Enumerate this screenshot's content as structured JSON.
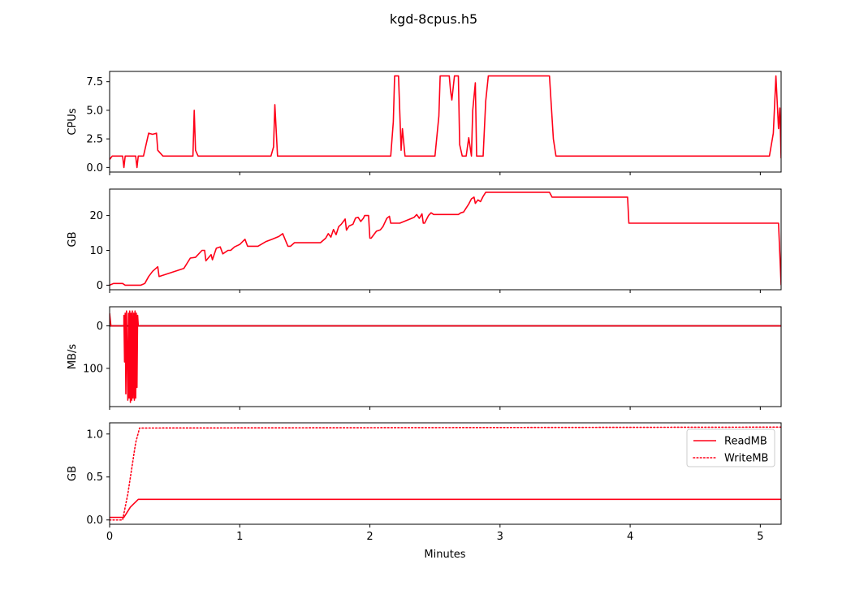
{
  "figure": {
    "title": "kgd-8cpus.h5",
    "xlabel": "Minutes",
    "x_ticks": [
      "0",
      "1",
      "2",
      "3",
      "4",
      "5"
    ]
  },
  "colors": {
    "series": "#ff0018",
    "zero_line": "#000000",
    "axes": "#000000"
  },
  "chart_data": [
    {
      "type": "line",
      "ylabel": "CPUs",
      "xlim": [
        0,
        5.16
      ],
      "ylim": [
        -0.4,
        8.4
      ],
      "y_ticks": [
        0,
        2.5,
        5,
        7.5
      ],
      "y_tick_labels": [
        "0.0",
        "2.5",
        "5.0",
        "7.5"
      ],
      "grid": false,
      "series": [
        {
          "style": "solid",
          "points": [
            [
              0,
              0.7
            ],
            [
              0.02,
              1
            ],
            [
              0.1,
              1
            ],
            [
              0.11,
              0
            ],
            [
              0.12,
              1
            ],
            [
              0.2,
              1
            ],
            [
              0.21,
              0
            ],
            [
              0.22,
              1
            ],
            [
              0.26,
              1
            ],
            [
              0.3,
              3
            ],
            [
              0.33,
              2.9
            ],
            [
              0.36,
              3
            ],
            [
              0.37,
              1.5
            ],
            [
              0.41,
              1
            ],
            [
              0.64,
              1
            ],
            [
              0.65,
              5
            ],
            [
              0.66,
              1.5
            ],
            [
              0.68,
              1
            ],
            [
              1.24,
              1
            ],
            [
              1.26,
              1.8
            ],
            [
              1.27,
              5.5
            ],
            [
              1.29,
              1
            ],
            [
              2.16,
              1
            ],
            [
              2.18,
              4
            ],
            [
              2.19,
              8
            ],
            [
              2.22,
              8
            ],
            [
              2.24,
              1.5
            ],
            [
              2.25,
              3.4
            ],
            [
              2.27,
              1
            ],
            [
              2.5,
              1
            ],
            [
              2.53,
              4.5
            ],
            [
              2.54,
              8
            ],
            [
              2.61,
              8
            ],
            [
              2.62,
              6.7
            ],
            [
              2.63,
              5.9
            ],
            [
              2.65,
              8
            ],
            [
              2.68,
              8
            ],
            [
              2.69,
              2
            ],
            [
              2.71,
              1
            ],
            [
              2.74,
              1
            ],
            [
              2.76,
              2.6
            ],
            [
              2.78,
              1
            ],
            [
              2.79,
              5
            ],
            [
              2.81,
              7.4
            ],
            [
              2.82,
              1
            ],
            [
              2.87,
              1
            ],
            [
              2.89,
              5.8
            ],
            [
              2.91,
              8
            ],
            [
              3.38,
              8
            ],
            [
              3.41,
              2.5
            ],
            [
              3.43,
              1
            ],
            [
              5.07,
              1
            ],
            [
              5.1,
              3
            ],
            [
              5.12,
              8
            ],
            [
              5.14,
              3.4
            ],
            [
              5.15,
              5.2
            ],
            [
              5.16,
              0.8
            ]
          ]
        }
      ]
    },
    {
      "type": "line",
      "ylabel": "GB",
      "xlim": [
        0,
        5.16
      ],
      "ylim": [
        -1.3,
        27.6
      ],
      "y_ticks": [
        0,
        10,
        20
      ],
      "y_tick_labels": [
        "0",
        "10",
        "20"
      ],
      "grid": false,
      "series": [
        {
          "style": "solid",
          "points": [
            [
              0,
              0
            ],
            [
              0.03,
              0.5
            ],
            [
              0.1,
              0.5
            ],
            [
              0.12,
              0
            ],
            [
              0.24,
              0
            ],
            [
              0.27,
              0.5
            ],
            [
              0.3,
              2.5
            ],
            [
              0.33,
              4
            ],
            [
              0.37,
              5.3
            ],
            [
              0.38,
              2.5
            ],
            [
              0.57,
              4.8
            ],
            [
              0.62,
              7.8
            ],
            [
              0.66,
              8
            ],
            [
              0.71,
              10
            ],
            [
              0.73,
              10
            ],
            [
              0.74,
              7
            ],
            [
              0.78,
              8.8
            ],
            [
              0.79,
              7.3
            ],
            [
              0.82,
              10.6
            ],
            [
              0.85,
              11
            ],
            [
              0.87,
              9
            ],
            [
              0.91,
              10
            ],
            [
              0.93,
              10
            ],
            [
              0.96,
              11
            ],
            [
              1.0,
              11.7
            ],
            [
              1.04,
              13.2
            ],
            [
              1.06,
              11.2
            ],
            [
              1.14,
              11.2
            ],
            [
              1.2,
              12.5
            ],
            [
              1.25,
              13.2
            ],
            [
              1.3,
              14
            ],
            [
              1.33,
              14.8
            ],
            [
              1.37,
              11.2
            ],
            [
              1.39,
              11.2
            ],
            [
              1.42,
              12.2
            ],
            [
              1.62,
              12.2
            ],
            [
              1.66,
              13.5
            ],
            [
              1.68,
              14.8
            ],
            [
              1.7,
              13.8
            ],
            [
              1.72,
              16
            ],
            [
              1.74,
              14.5
            ],
            [
              1.76,
              16.8
            ],
            [
              1.78,
              17.5
            ],
            [
              1.81,
              19
            ],
            [
              1.82,
              15.8
            ],
            [
              1.84,
              17
            ],
            [
              1.87,
              17.5
            ],
            [
              1.89,
              19.3
            ],
            [
              1.91,
              19.5
            ],
            [
              1.93,
              18.3
            ],
            [
              1.95,
              19.2
            ],
            [
              1.96,
              20
            ],
            [
              1.99,
              20
            ],
            [
              2.0,
              13.5
            ],
            [
              2.01,
              13.5
            ],
            [
              2.05,
              15.5
            ],
            [
              2.08,
              15.9
            ],
            [
              2.1,
              16.8
            ],
            [
              2.13,
              19.2
            ],
            [
              2.15,
              19.8
            ],
            [
              2.16,
              17.8
            ],
            [
              2.23,
              17.8
            ],
            [
              2.34,
              19.5
            ],
            [
              2.36,
              20.3
            ],
            [
              2.38,
              19.2
            ],
            [
              2.4,
              20.5
            ],
            [
              2.41,
              17.8
            ],
            [
              2.42,
              17.8
            ],
            [
              2.45,
              20
            ],
            [
              2.47,
              20.8
            ],
            [
              2.49,
              20.3
            ],
            [
              2.68,
              20.3
            ],
            [
              2.7,
              20.8
            ],
            [
              2.72,
              21
            ],
            [
              2.76,
              23.3
            ],
            [
              2.78,
              24.8
            ],
            [
              2.8,
              25.3
            ],
            [
              2.81,
              23.5
            ],
            [
              2.83,
              24.5
            ],
            [
              2.85,
              24
            ],
            [
              2.87,
              25.5
            ],
            [
              2.89,
              26.7
            ],
            [
              3.38,
              26.7
            ],
            [
              3.4,
              25.3
            ],
            [
              3.98,
              25.3
            ],
            [
              3.99,
              17.8
            ],
            [
              5.14,
              17.8
            ],
            [
              5.16,
              0
            ]
          ]
        }
      ]
    },
    {
      "type": "line",
      "ylabel": "MB/s",
      "y_inverted": true,
      "xlim": [
        0,
        5.16
      ],
      "ylim": [
        -45,
        190
      ],
      "y_ticks": [
        0,
        100
      ],
      "y_tick_labels": [
        "0",
        "100"
      ],
      "grid": false,
      "reference_line": 0,
      "series": [
        {
          "style": "solid",
          "points": [
            [
              0,
              -30
            ],
            [
              0.01,
              0
            ],
            [
              0.11,
              0
            ],
            [
              0.11,
              -25
            ],
            [
              0.115,
              85
            ],
            [
              0.12,
              -30
            ],
            [
              0.125,
              160
            ],
            [
              0.13,
              -35
            ],
            [
              0.14,
              175
            ],
            [
              0.145,
              -30
            ],
            [
              0.15,
              170
            ],
            [
              0.155,
              -35
            ],
            [
              0.16,
              180
            ],
            [
              0.165,
              -30
            ],
            [
              0.17,
              175
            ],
            [
              0.175,
              -35
            ],
            [
              0.18,
              170
            ],
            [
              0.185,
              -30
            ],
            [
              0.19,
              175
            ],
            [
              0.195,
              -35
            ],
            [
              0.2,
              170
            ],
            [
              0.205,
              -30
            ],
            [
              0.21,
              145
            ],
            [
              0.215,
              -25
            ],
            [
              0.22,
              0
            ],
            [
              5.16,
              0
            ]
          ]
        }
      ]
    },
    {
      "type": "line",
      "ylabel": "GB",
      "xlim": [
        0,
        5.16
      ],
      "ylim": [
        -0.05,
        1.13
      ],
      "y_ticks": [
        0,
        0.5,
        1.0
      ],
      "y_tick_labels": [
        "0.0",
        "0.5",
        "1.0"
      ],
      "grid": false,
      "legend": "top-right",
      "series": [
        {
          "name": "ReadMB",
          "style": "solid",
          "points": [
            [
              0,
              0.03
            ],
            [
              0.11,
              0.03
            ],
            [
              0.16,
              0.15
            ],
            [
              0.22,
              0.24
            ],
            [
              5.16,
              0.24
            ]
          ]
        },
        {
          "name": "WriteMB",
          "style": "dotted",
          "points": [
            [
              0,
              0
            ],
            [
              0.1,
              0
            ],
            [
              0.14,
              0.3
            ],
            [
              0.2,
              0.9
            ],
            [
              0.23,
              1.07
            ],
            [
              5.16,
              1.08
            ]
          ]
        }
      ]
    }
  ]
}
